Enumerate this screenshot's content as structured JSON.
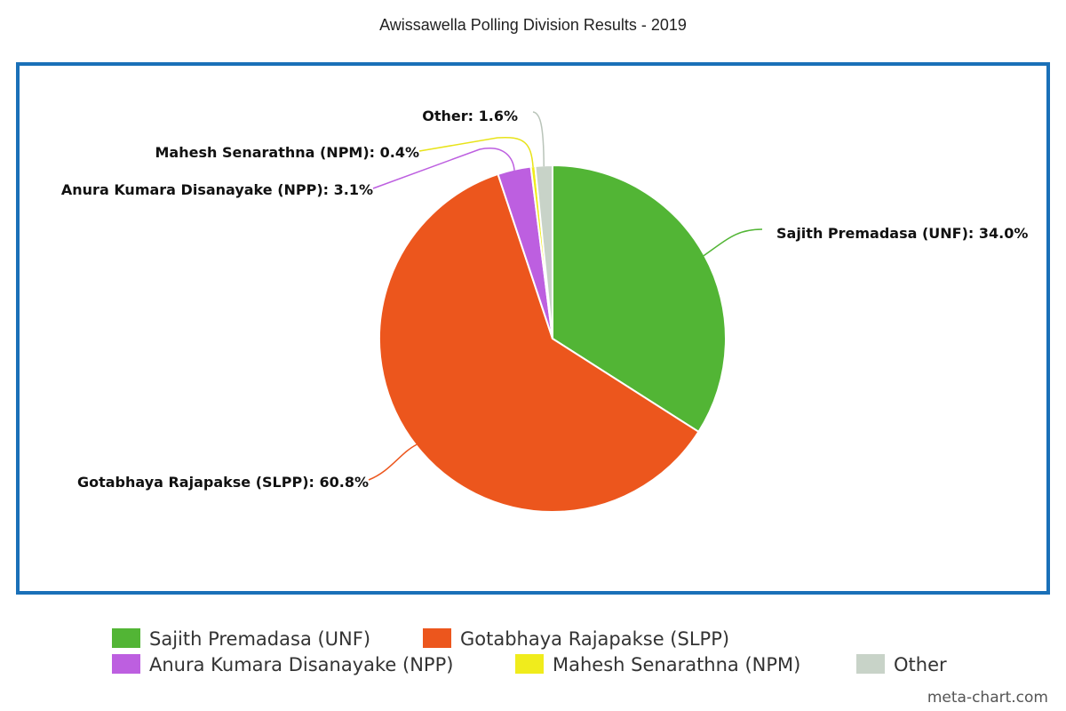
{
  "chart_data": {
    "type": "pie",
    "title": "Awissawella Polling Division Results - 2019",
    "slices": [
      {
        "name": "Sajith Premadasa (UNF)",
        "value": 34.0,
        "label": "Sajith Premadasa (UNF): 34.0%",
        "color": "#52b535"
      },
      {
        "name": "Gotabhaya Rajapakse (SLPP)",
        "value": 60.8,
        "label": "Gotabhaya Rajapakse (SLPP): 60.8%",
        "color": "#ec561d"
      },
      {
        "name": "Anura Kumara Disanayake (NPP)",
        "value": 3.1,
        "label": "Anura Kumara Disanayake (NPP): 3.1%",
        "color": "#bd5fe0"
      },
      {
        "name": "Mahesh Senarathna (NPM)",
        "value": 0.4,
        "label": "Mahesh Senarathna (NPM): 0.4%",
        "color": "#f0ec1c"
      },
      {
        "name": "Other",
        "value": 1.6,
        "label": "Other: 1.6%",
        "color": "#c8d3c8"
      }
    ],
    "frame_color": "#1a70b8",
    "legend_position": "bottom"
  },
  "watermark": "meta-chart.com"
}
